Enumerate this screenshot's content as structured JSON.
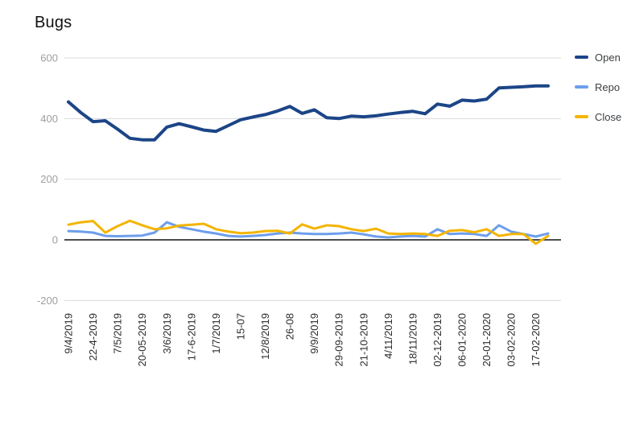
{
  "title": "Bugs",
  "legend": {
    "items": [
      {
        "label": "Open",
        "color": "#1c4587"
      },
      {
        "label": "Repo",
        "color": "#6d9eeb"
      },
      {
        "label": "Close",
        "color": "#f4b400"
      }
    ]
  },
  "chart_data": {
    "type": "line",
    "title": "Bugs",
    "xlabel": "",
    "ylabel": "",
    "ylim": [
      -200,
      600
    ],
    "yticks": [
      600,
      400,
      200,
      0,
      -200
    ],
    "grid": true,
    "legend_position": "right",
    "x_labels": [
      "9/4/2019",
      "22-4-2019",
      "7/5/2019",
      "20-05-2019",
      "3/6/2019",
      "17-6-2019",
      "1/7/2019",
      "15-07",
      "12/8/2019",
      "26-08",
      "9/9/2019",
      "29-09-2019",
      "21-10-2019",
      "4/11/2019",
      "18/11/2019",
      "02-12-2019",
      "06-01-2020",
      "20-01-2020",
      "03-02-2020",
      "17-02-2020"
    ],
    "points_per_label": 2,
    "series": [
      {
        "name": "Open",
        "color": "#1c4587",
        "values": [
          455,
          420,
          390,
          393,
          365,
          335,
          330,
          330,
          372,
          383,
          373,
          362,
          358,
          377,
          396,
          405,
          413,
          425,
          440,
          417,
          429,
          403,
          400,
          408,
          406,
          409,
          415,
          420,
          424,
          416,
          448,
          441,
          461,
          458,
          464,
          501,
          503,
          505,
          508,
          508
        ]
      },
      {
        "name": "Repo",
        "color": "#6d9eeb",
        "values": [
          29,
          27,
          24,
          13,
          12,
          13,
          14,
          24,
          58,
          43,
          35,
          27,
          21,
          13,
          11,
          13,
          16,
          21,
          24,
          21,
          19,
          19,
          21,
          24,
          18,
          11,
          8,
          11,
          13,
          11,
          35,
          19,
          21,
          19,
          13,
          48,
          27,
          19,
          11,
          21
        ]
      },
      {
        "name": "Close",
        "color": "#f4b400",
        "values": [
          50,
          58,
          62,
          24,
          45,
          63,
          48,
          35,
          38,
          47,
          50,
          53,
          35,
          27,
          22,
          24,
          29,
          30,
          21,
          51,
          37,
          48,
          45,
          35,
          29,
          37,
          21,
          19,
          21,
          19,
          13,
          30,
          32,
          25,
          35,
          13,
          19,
          19,
          -13,
          13
        ]
      }
    ]
  }
}
